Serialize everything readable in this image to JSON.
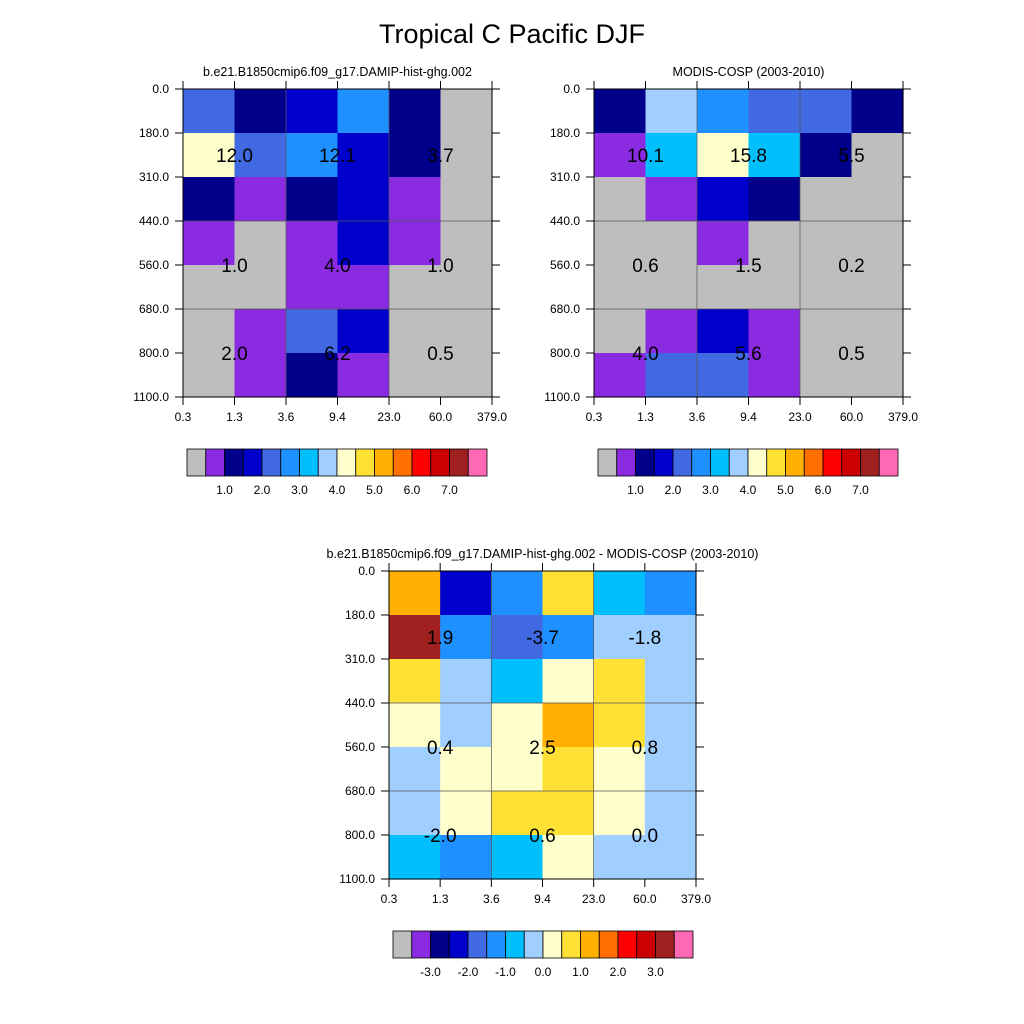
{
  "figure": {
    "title": "Tropical C Pacific DJF"
  },
  "chart_data": [
    {
      "type": "heatmap",
      "title": "b.e21.B1850cmip6.f09_g17.DAMIP-hist-ghg.002",
      "x_ticks": [
        "0.3",
        "1.3",
        "3.6",
        "9.4",
        "23.0",
        "60.0",
        "379.0"
      ],
      "y_ticks": [
        "0.0",
        "180.0",
        "310.0",
        "440.0",
        "560.0",
        "680.0",
        "800.0",
        "1100.0"
      ],
      "grid": true,
      "missing_color": "#BEBEBE",
      "cells": [
        [
          "#4169E1",
          "#00008B",
          "#0000CD",
          "#1E90FF",
          "#00008B",
          "#BEBEBE"
        ],
        [
          "#FFFFCC",
          "#4169E1",
          "#1E90FF",
          "#0000CD",
          "#00008B",
          "#BEBEBE"
        ],
        [
          "#00008B",
          "#8A2BE2",
          "#00008B",
          "#0000CD",
          "#8A2BE2",
          "#BEBEBE"
        ],
        [
          "#8A2BE2",
          "#BEBEBE",
          "#8A2BE2",
          "#0000CD",
          "#8A2BE2",
          "#BEBEBE"
        ],
        [
          "#BEBEBE",
          "#BEBEBE",
          "#8A2BE2",
          "#8A2BE2",
          "#BEBEBE",
          "#BEBEBE"
        ],
        [
          "#BEBEBE",
          "#8A2BE2",
          "#4169E1",
          "#0000CD",
          "#BEBEBE",
          "#BEBEBE"
        ],
        [
          "#BEBEBE",
          "#8A2BE2",
          "#00008B",
          "#8A2BE2",
          "#BEBEBE",
          "#BEBEBE"
        ]
      ],
      "annotations": [
        {
          "label": "12.0",
          "col": 1,
          "row": 1.5
        },
        {
          "label": "12.1",
          "col": 3,
          "row": 1.5
        },
        {
          "label": "3.7",
          "col": 5,
          "row": 1.5
        },
        {
          "label": "1.0",
          "col": 1,
          "row": 4
        },
        {
          "label": "4.0",
          "col": 3,
          "row": 4
        },
        {
          "label": "1.0",
          "col": 5,
          "row": 4
        },
        {
          "label": "2.0",
          "col": 1,
          "row": 6
        },
        {
          "label": "6.2",
          "col": 3,
          "row": 6
        },
        {
          "label": "0.5",
          "col": 5,
          "row": 6
        }
      ],
      "colorbar": {
        "colors": [
          "#BEBEBE",
          "#8A2BE2",
          "#00008B",
          "#0000CD",
          "#4169E1",
          "#1E90FF",
          "#00BFFF",
          "#A0CFFF",
          "#FFFFCC",
          "#FFE135",
          "#FFB000",
          "#FF7000",
          "#FF0000",
          "#CC0000",
          "#A02020",
          "#FF69B4"
        ],
        "labels": [
          "1.0",
          "2.0",
          "3.0",
          "4.0",
          "5.0",
          "6.0",
          "7.0"
        ],
        "label_start_boundary": 2,
        "label_step": 2
      }
    },
    {
      "type": "heatmap",
      "title": "MODIS-COSP (2003-2010)",
      "x_ticks": [
        "0.3",
        "1.3",
        "3.6",
        "9.4",
        "23.0",
        "60.0",
        "379.0"
      ],
      "y_ticks": [
        "0.0",
        "180.0",
        "310.0",
        "440.0",
        "560.0",
        "680.0",
        "800.0",
        "1100.0"
      ],
      "grid": true,
      "missing_color": "#BEBEBE",
      "cells": [
        [
          "#00008B",
          "#A0CFFF",
          "#1E90FF",
          "#4169E1",
          "#4169E1",
          "#00008B"
        ],
        [
          "#8A2BE2",
          "#00BFFF",
          "#FFFFCC",
          "#00BFFF",
          "#00008B",
          "#BEBEBE"
        ],
        [
          "#BEBEBE",
          "#8A2BE2",
          "#0000CD",
          "#00008B",
          "#BEBEBE",
          "#BEBEBE"
        ],
        [
          "#BEBEBE",
          "#BEBEBE",
          "#8A2BE2",
          "#BEBEBE",
          "#BEBEBE",
          "#BEBEBE"
        ],
        [
          "#BEBEBE",
          "#BEBEBE",
          "#BEBEBE",
          "#BEBEBE",
          "#BEBEBE",
          "#BEBEBE"
        ],
        [
          "#BEBEBE",
          "#8A2BE2",
          "#0000CD",
          "#8A2BE2",
          "#BEBEBE",
          "#BEBEBE"
        ],
        [
          "#8A2BE2",
          "#4169E1",
          "#4169E1",
          "#8A2BE2",
          "#BEBEBE",
          "#BEBEBE"
        ]
      ],
      "annotations": [
        {
          "label": "10.1",
          "col": 1,
          "row": 1.5
        },
        {
          "label": "15.8",
          "col": 3,
          "row": 1.5
        },
        {
          "label": "5.5",
          "col": 5,
          "row": 1.5
        },
        {
          "label": "0.6",
          "col": 1,
          "row": 4
        },
        {
          "label": "1.5",
          "col": 3,
          "row": 4
        },
        {
          "label": "0.2",
          "col": 5,
          "row": 4
        },
        {
          "label": "4.0",
          "col": 1,
          "row": 6
        },
        {
          "label": "5.6",
          "col": 3,
          "row": 6
        },
        {
          "label": "0.5",
          "col": 5,
          "row": 6
        }
      ],
      "colorbar": {
        "colors": [
          "#BEBEBE",
          "#8A2BE2",
          "#00008B",
          "#0000CD",
          "#4169E1",
          "#1E90FF",
          "#00BFFF",
          "#A0CFFF",
          "#FFFFCC",
          "#FFE135",
          "#FFB000",
          "#FF7000",
          "#FF0000",
          "#CC0000",
          "#A02020",
          "#FF69B4"
        ],
        "labels": [
          "1.0",
          "2.0",
          "3.0",
          "4.0",
          "5.0",
          "6.0",
          "7.0"
        ],
        "label_start_boundary": 2,
        "label_step": 2
      }
    },
    {
      "type": "heatmap",
      "title": "b.e21.B1850cmip6.f09_g17.DAMIP-hist-ghg.002 - MODIS-COSP (2003-2010)",
      "x_ticks": [
        "0.3",
        "1.3",
        "3.6",
        "9.4",
        "23.0",
        "60.0",
        "379.0"
      ],
      "y_ticks": [
        "0.0",
        "180.0",
        "310.0",
        "440.0",
        "560.0",
        "680.0",
        "800.0",
        "1100.0"
      ],
      "grid": true,
      "cells": [
        [
          "#FFB000",
          "#0000CD",
          "#1E90FF",
          "#FFE135",
          "#00BFFF",
          "#1E90FF"
        ],
        [
          "#A02020",
          "#1E90FF",
          "#4169E1",
          "#1E90FF",
          "#A0CFFF",
          "#A0CFFF"
        ],
        [
          "#FFE135",
          "#A0CFFF",
          "#00BFFF",
          "#FFFFCC",
          "#FFE135",
          "#A0CFFF"
        ],
        [
          "#FFFFCC",
          "#A0CFFF",
          "#FFFFCC",
          "#FFB000",
          "#FFE135",
          "#A0CFFF"
        ],
        [
          "#A0CFFF",
          "#FFFFCC",
          "#FFFFCC",
          "#FFE135",
          "#FFFFCC",
          "#A0CFFF"
        ],
        [
          "#A0CFFF",
          "#FFFFCC",
          "#FFE135",
          "#FFE135",
          "#FFFFCC",
          "#A0CFFF"
        ],
        [
          "#00BFFF",
          "#1E90FF",
          "#00BFFF",
          "#FFFFCC",
          "#A0CFFF",
          "#A0CFFF"
        ]
      ],
      "annotations": [
        {
          "label": "1.9",
          "col": 1,
          "row": 1.5
        },
        {
          "label": "-3.7",
          "col": 3,
          "row": 1.5
        },
        {
          "label": "-1.8",
          "col": 5,
          "row": 1.5
        },
        {
          "label": "0.4",
          "col": 1,
          "row": 4
        },
        {
          "label": "2.5",
          "col": 3,
          "row": 4
        },
        {
          "label": "0.8",
          "col": 5,
          "row": 4
        },
        {
          "label": "-2.0",
          "col": 1,
          "row": 6
        },
        {
          "label": "0.6",
          "col": 3,
          "row": 6
        },
        {
          "label": "0.0",
          "col": 5,
          "row": 6
        }
      ],
      "colorbar": {
        "colors": [
          "#BEBEBE",
          "#8A2BE2",
          "#00008B",
          "#0000CD",
          "#4169E1",
          "#1E90FF",
          "#00BFFF",
          "#A0CFFF",
          "#FFFFCC",
          "#FFE135",
          "#FFB000",
          "#FF7000",
          "#FF0000",
          "#CC0000",
          "#A02020",
          "#FF69B4"
        ],
        "labels": [
          "-3.0",
          "-2.0",
          "-1.0",
          "0.0",
          "1.0",
          "2.0",
          "3.0"
        ],
        "label_start_boundary": 2,
        "label_step": 2
      }
    }
  ]
}
